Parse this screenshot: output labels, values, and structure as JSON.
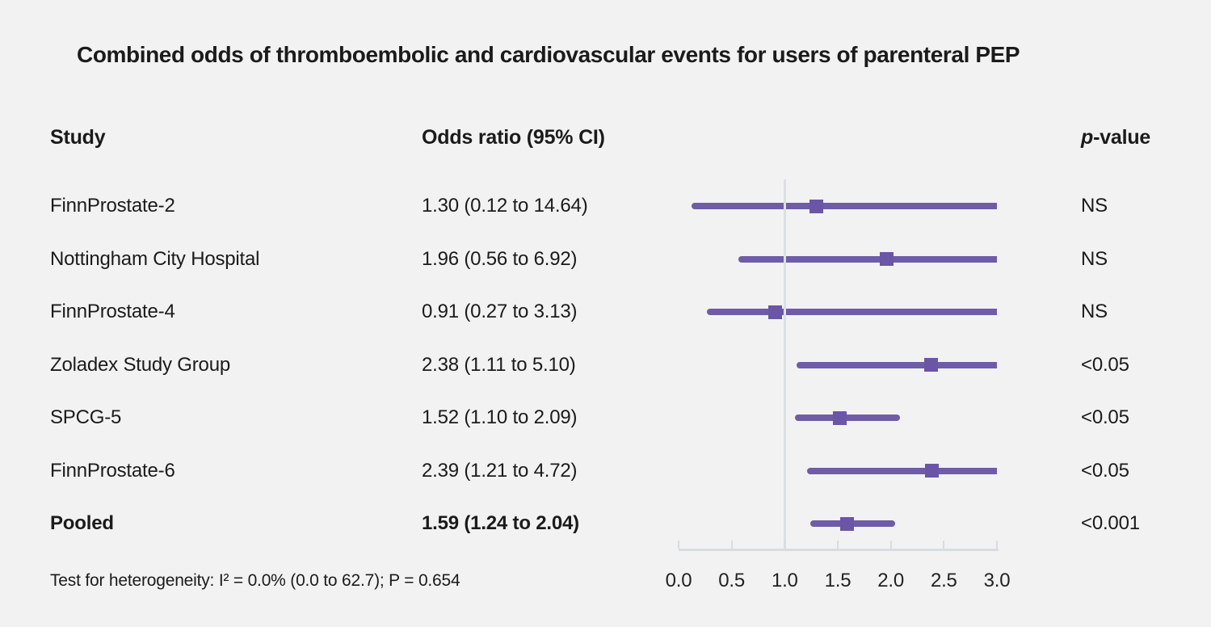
{
  "title": "Combined odds of thromboembolic and cardiovascular events for users of parenteral PEP",
  "header": {
    "study": "Study",
    "odds_ratio": "Odds ratio (95% CI)",
    "p_italic": "p",
    "p_rest": "-value"
  },
  "footnote": "Test for heterogeneity: I² = 0.0% (0.0 to 62.7); P = 0.654",
  "colors": {
    "background": "#f2f2f2",
    "text": "#1b1b1b",
    "ci_line": "#6e5ca8",
    "marker": "#6b55a7",
    "reference_line": "#dbe0e4",
    "axis": "#d7dde2"
  },
  "chart_data": {
    "type": "forest",
    "title": "Combined odds of thromboembolic and cardiovascular events for users of parenteral PEP",
    "x_range": [
      0,
      3
    ],
    "x_ticks": [
      "0.0",
      "0.5",
      "1.0",
      "1.5",
      "2.0",
      "2.5",
      "3.0"
    ],
    "x_tick_values": [
      0,
      0.5,
      1.0,
      1.5,
      2.0,
      2.5,
      3.0
    ],
    "reference_line": 1.0,
    "grid": false,
    "rows": [
      {
        "study": "FinnProstate-2",
        "or": 1.3,
        "ci_low": 0.12,
        "ci_high": 14.64,
        "or_label": "1.30 (0.12 to 14.64)",
        "p_value": "NS",
        "emphasis": false
      },
      {
        "study": "Nottingham City Hospital",
        "or": 1.96,
        "ci_low": 0.56,
        "ci_high": 6.92,
        "or_label": "1.96 (0.56 to 6.92)",
        "p_value": "NS",
        "emphasis": false
      },
      {
        "study": "FinnProstate-4",
        "or": 0.91,
        "ci_low": 0.27,
        "ci_high": 3.13,
        "or_label": "0.91 (0.27 to 3.13)",
        "p_value": "NS",
        "emphasis": false
      },
      {
        "study": "Zoladex Study Group",
        "or": 2.38,
        "ci_low": 1.11,
        "ci_high": 5.1,
        "or_label": "2.38 (1.11 to 5.10)",
        "p_value": "<0.05",
        "emphasis": false
      },
      {
        "study": "SPCG-5",
        "or": 1.52,
        "ci_low": 1.1,
        "ci_high": 2.09,
        "or_label": "1.52 (1.10 to 2.09)",
        "p_value": "<0.05",
        "emphasis": false
      },
      {
        "study": "FinnProstate-6",
        "or": 2.39,
        "ci_low": 1.21,
        "ci_high": 4.72,
        "or_label": "2.39 (1.21 to 4.72)",
        "p_value": "<0.05",
        "emphasis": false
      },
      {
        "study": "Pooled",
        "or": 1.59,
        "ci_low": 1.24,
        "ci_high": 2.04,
        "or_label": "1.59 (1.24 to 2.04)",
        "p_value": "<0.001",
        "emphasis": true
      }
    ]
  }
}
